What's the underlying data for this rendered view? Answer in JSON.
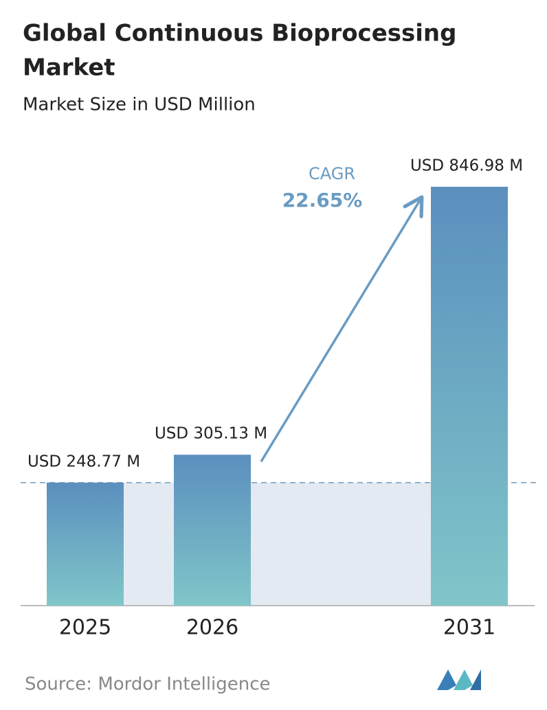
{
  "chart_data": {
    "type": "bar",
    "title": [
      "Global Continuous Bioprocessing",
      "Market"
    ],
    "subtitle": "Market Size in USD Million",
    "categories": [
      "2025",
      "2026",
      "2031"
    ],
    "values": [
      248.77,
      305.13,
      846.98
    ],
    "value_labels": [
      "USD 248.77 M",
      "USD 305.13 M",
      "USD 846.98 M"
    ],
    "gradient": [
      "#5b8fbe",
      "#80c6c9"
    ],
    "annotation": {
      "label": "CAGR",
      "value": "22.65%"
    },
    "source": "Source:  Mordor Intelligence"
  }
}
